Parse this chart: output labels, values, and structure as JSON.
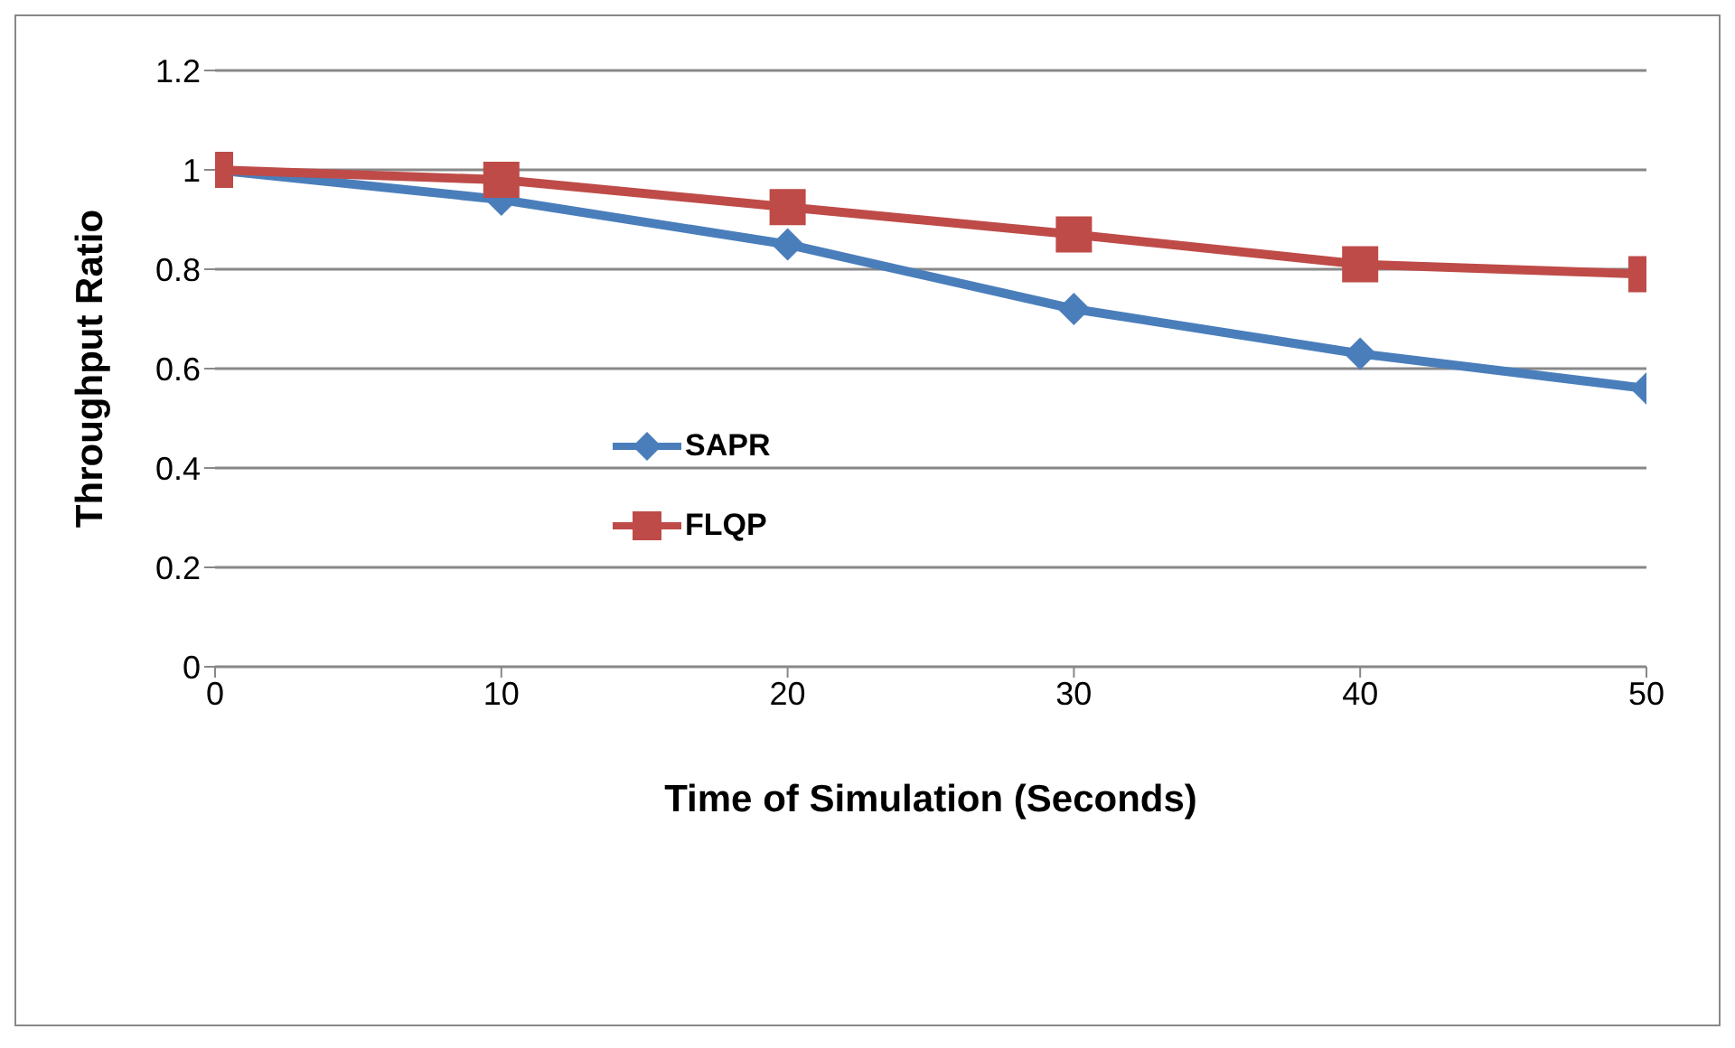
{
  "chart_data": {
    "type": "line",
    "xlabel": "Time of Simulation (Seconds)",
    "ylabel": "Throughput  Ratio",
    "x": [
      0,
      10,
      20,
      30,
      40,
      50
    ],
    "series": [
      {
        "name": "SAPR",
        "color": "#4a7ebb",
        "marker": "diamond",
        "values": [
          1,
          0.94,
          0.85,
          0.72,
          0.63,
          0.56
        ]
      },
      {
        "name": "FLQP",
        "color": "#be4b48",
        "marker": "square",
        "values": [
          1,
          0.98,
          0.925,
          0.87,
          0.81,
          0.79
        ]
      }
    ],
    "xlim": [
      0,
      50
    ],
    "xticks": [
      0,
      10,
      20,
      30,
      40,
      50
    ],
    "ylim": [
      0,
      1.2
    ],
    "yticks": [
      0,
      0.2,
      0.4,
      0.6,
      0.8,
      1,
      1.2
    ],
    "grid": "y",
    "legend": "left",
    "line_style": "solid"
  }
}
